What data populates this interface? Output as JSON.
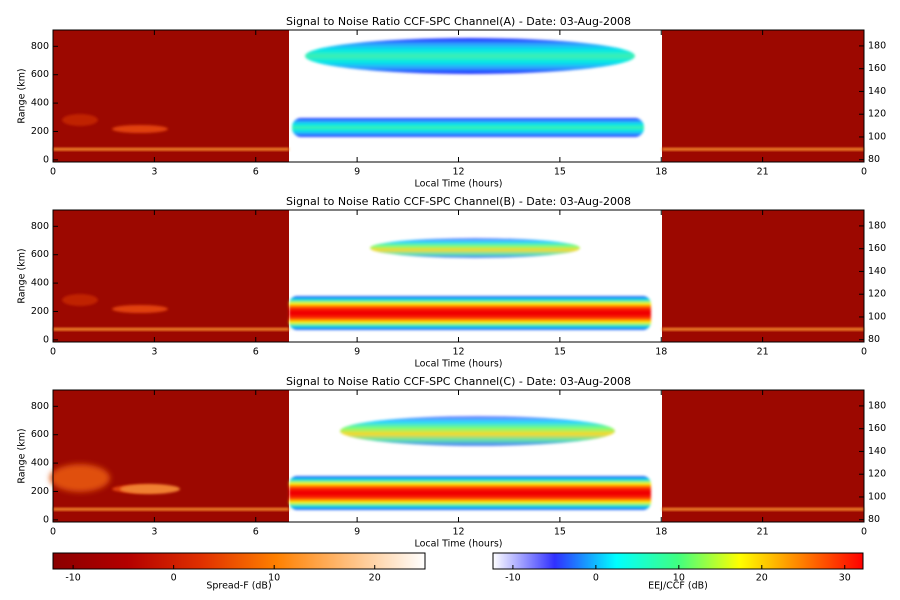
{
  "chart_data": [
    {
      "type": "heatmap",
      "title": "Signal to Noise Ratio CCF-SPC Channel(A) - Date: 03-Aug-2008",
      "xlabel": "Local Time (hours)",
      "ylabel": "Range (km)",
      "xlim": [
        0,
        24
      ],
      "xticks": [
        0,
        3,
        6,
        9,
        12,
        15,
        18,
        21,
        {
          "value": 24,
          "label": "0"
        }
      ],
      "ylim": [
        -15,
        915
      ],
      "yticks": [
        0,
        200,
        400,
        600,
        800
      ],
      "y2lim": [
        78,
        194
      ],
      "y2ticks": [
        80,
        100,
        120,
        140,
        160,
        180
      ]
    },
    {
      "type": "heatmap",
      "title": "Signal to Noise Ratio CCF-SPC Channel(B) - Date: 03-Aug-2008",
      "xlabel": "Local Time (hours)",
      "ylabel": "Range (km)",
      "xlim": [
        0,
        24
      ],
      "xticks": [
        0,
        3,
        6,
        9,
        12,
        15,
        18,
        21,
        {
          "value": 24,
          "label": "0"
        }
      ],
      "ylim": [
        -15,
        915
      ],
      "yticks": [
        0,
        200,
        400,
        600,
        800
      ],
      "y2lim": [
        78,
        194
      ],
      "y2ticks": [
        80,
        100,
        120,
        140,
        160,
        180
      ]
    },
    {
      "type": "heatmap",
      "title": "Signal to Noise Ratio CCF-SPC Channel(C) - Date: 03-Aug-2008",
      "xlabel": "Local Time (hours)",
      "ylabel": "Range (km)",
      "xlim": [
        0,
        24
      ],
      "xticks": [
        0,
        3,
        6,
        9,
        12,
        15,
        18,
        21,
        {
          "value": 24,
          "label": "0"
        }
      ],
      "ylim": [
        -15,
        915
      ],
      "yticks": [
        0,
        200,
        400,
        600,
        800
      ],
      "y2lim": [
        78,
        194
      ],
      "y2ticks": [
        80,
        100,
        120,
        140,
        160,
        180
      ]
    },
    {
      "type": "colorbar",
      "label": "Spread-F (dB)",
      "clim": [
        -12,
        25
      ],
      "ticks": [
        -10,
        0,
        10,
        20
      ],
      "colors": [
        "#8b0000",
        "#b40000",
        "#e03000",
        "#ff8000",
        "#ffc080",
        "#ffffff"
      ]
    },
    {
      "type": "colorbar",
      "label": "EEJ/CCF (dB)",
      "clim": [
        -12.4,
        32.2
      ],
      "ticks": [
        -10,
        0,
        10,
        20,
        30
      ],
      "colors": [
        "#ffffff",
        "#3030ff",
        "#00ffff",
        "#40ff80",
        "#ffff00",
        "#ff8000",
        "#ff0000"
      ]
    }
  ]
}
